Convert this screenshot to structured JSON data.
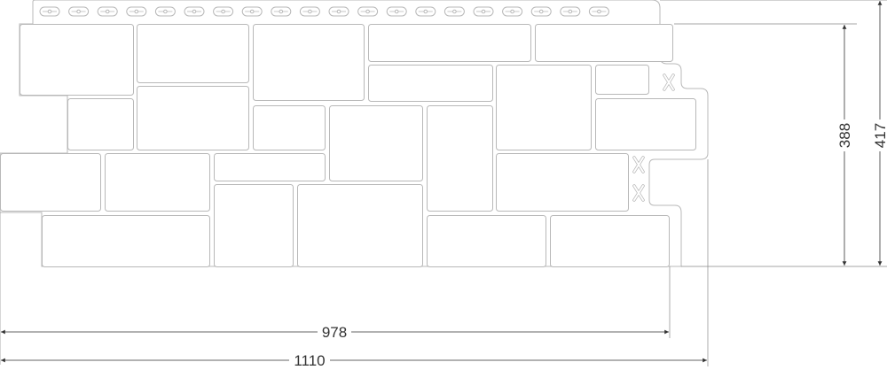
{
  "drawing": {
    "dimensions": {
      "width_panel": "978",
      "width_total": "1110",
      "height_panel": "388",
      "height_total": "417"
    },
    "nail_slot_count": 20,
    "colors": {
      "outline": "#b8b8b8",
      "dimension": "#333333"
    }
  }
}
